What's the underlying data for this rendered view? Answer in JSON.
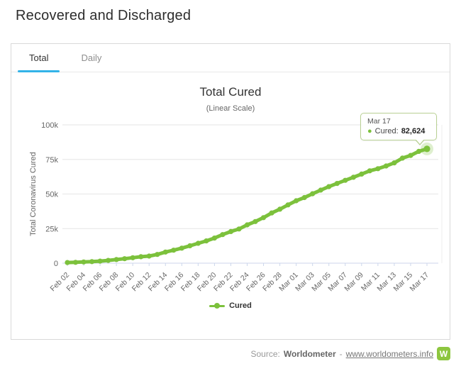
{
  "page": {
    "title": "Recovered and Discharged"
  },
  "tabs": [
    {
      "label": "Total",
      "active": true
    },
    {
      "label": "Daily",
      "active": false
    }
  ],
  "chart": {
    "title": "Total Cured",
    "subtitle": "(Linear Scale)",
    "y_axis_title": "Total Coronavirus Cured",
    "legend": {
      "label": "Cured"
    },
    "tooltip": {
      "date": "Mar 17",
      "dot": "●",
      "label": "Cured:",
      "value": "82,624"
    }
  },
  "chart_data": {
    "type": "line",
    "title": "Total Cured",
    "subtitle": "(Linear Scale)",
    "xlabel": "",
    "ylabel": "Total Coronavirus Cured",
    "ylim": [
      0,
      100000
    ],
    "yticks": [
      {
        "value": 0,
        "label": "0"
      },
      {
        "value": 25000,
        "label": "25k"
      },
      {
        "value": 50000,
        "label": "50k"
      },
      {
        "value": 75000,
        "label": "75k"
      },
      {
        "value": 100000,
        "label": "100k"
      }
    ],
    "x": [
      "Feb 02",
      "Feb 03",
      "Feb 04",
      "Feb 05",
      "Feb 06",
      "Feb 07",
      "Feb 08",
      "Feb 09",
      "Feb 10",
      "Feb 11",
      "Feb 12",
      "Feb 13",
      "Feb 14",
      "Feb 15",
      "Feb 16",
      "Feb 17",
      "Feb 18",
      "Feb 19",
      "Feb 20",
      "Feb 21",
      "Feb 22",
      "Feb 23",
      "Feb 24",
      "Feb 25",
      "Feb 26",
      "Feb 27",
      "Feb 28",
      "Feb 29",
      "Mar 01",
      "Mar 02",
      "Mar 03",
      "Mar 04",
      "Mar 05",
      "Mar 06",
      "Mar 07",
      "Mar 08",
      "Mar 09",
      "Mar 10",
      "Mar 11",
      "Mar 12",
      "Mar 13",
      "Mar 14",
      "Mar 15",
      "Mar 16",
      "Mar 17"
    ],
    "x_tick_every": 2,
    "series": [
      {
        "name": "Cured",
        "color": "#7cc13c",
        "values": [
          475,
          632,
          852,
          1124,
          1487,
          2011,
          2616,
          3244,
          3946,
          4683,
          5150,
          6295,
          8058,
          9395,
          10865,
          12583,
          14352,
          16121,
          18177,
          20659,
          22888,
          24734,
          27676,
          30098,
          32898,
          36294,
          39002,
          42162,
          45115,
          47413,
          50225,
          52796,
          55353,
          57629,
          59897,
          62109,
          64391,
          66776,
          68313,
          70251,
          72532,
          75937,
          77873,
          80840,
          82624
        ]
      }
    ],
    "grid": "horizontal",
    "legend_position": "bottom",
    "last_point_annotation": {
      "x": "Mar 17",
      "y": 82624,
      "display": "82,624"
    }
  },
  "footer": {
    "source_label": "Source:",
    "source_name": "Worldometer",
    "separator": "-",
    "link_text": "www.worldometers.info",
    "logo_letter": "W"
  },
  "colors": {
    "series_green": "#7cc13c",
    "tab_underline": "#33b3e8",
    "logo_green": "#8dc63f",
    "gridline": "#e6e6e6",
    "axis_line": "#ccd6eb",
    "tick_text": "#666666"
  }
}
